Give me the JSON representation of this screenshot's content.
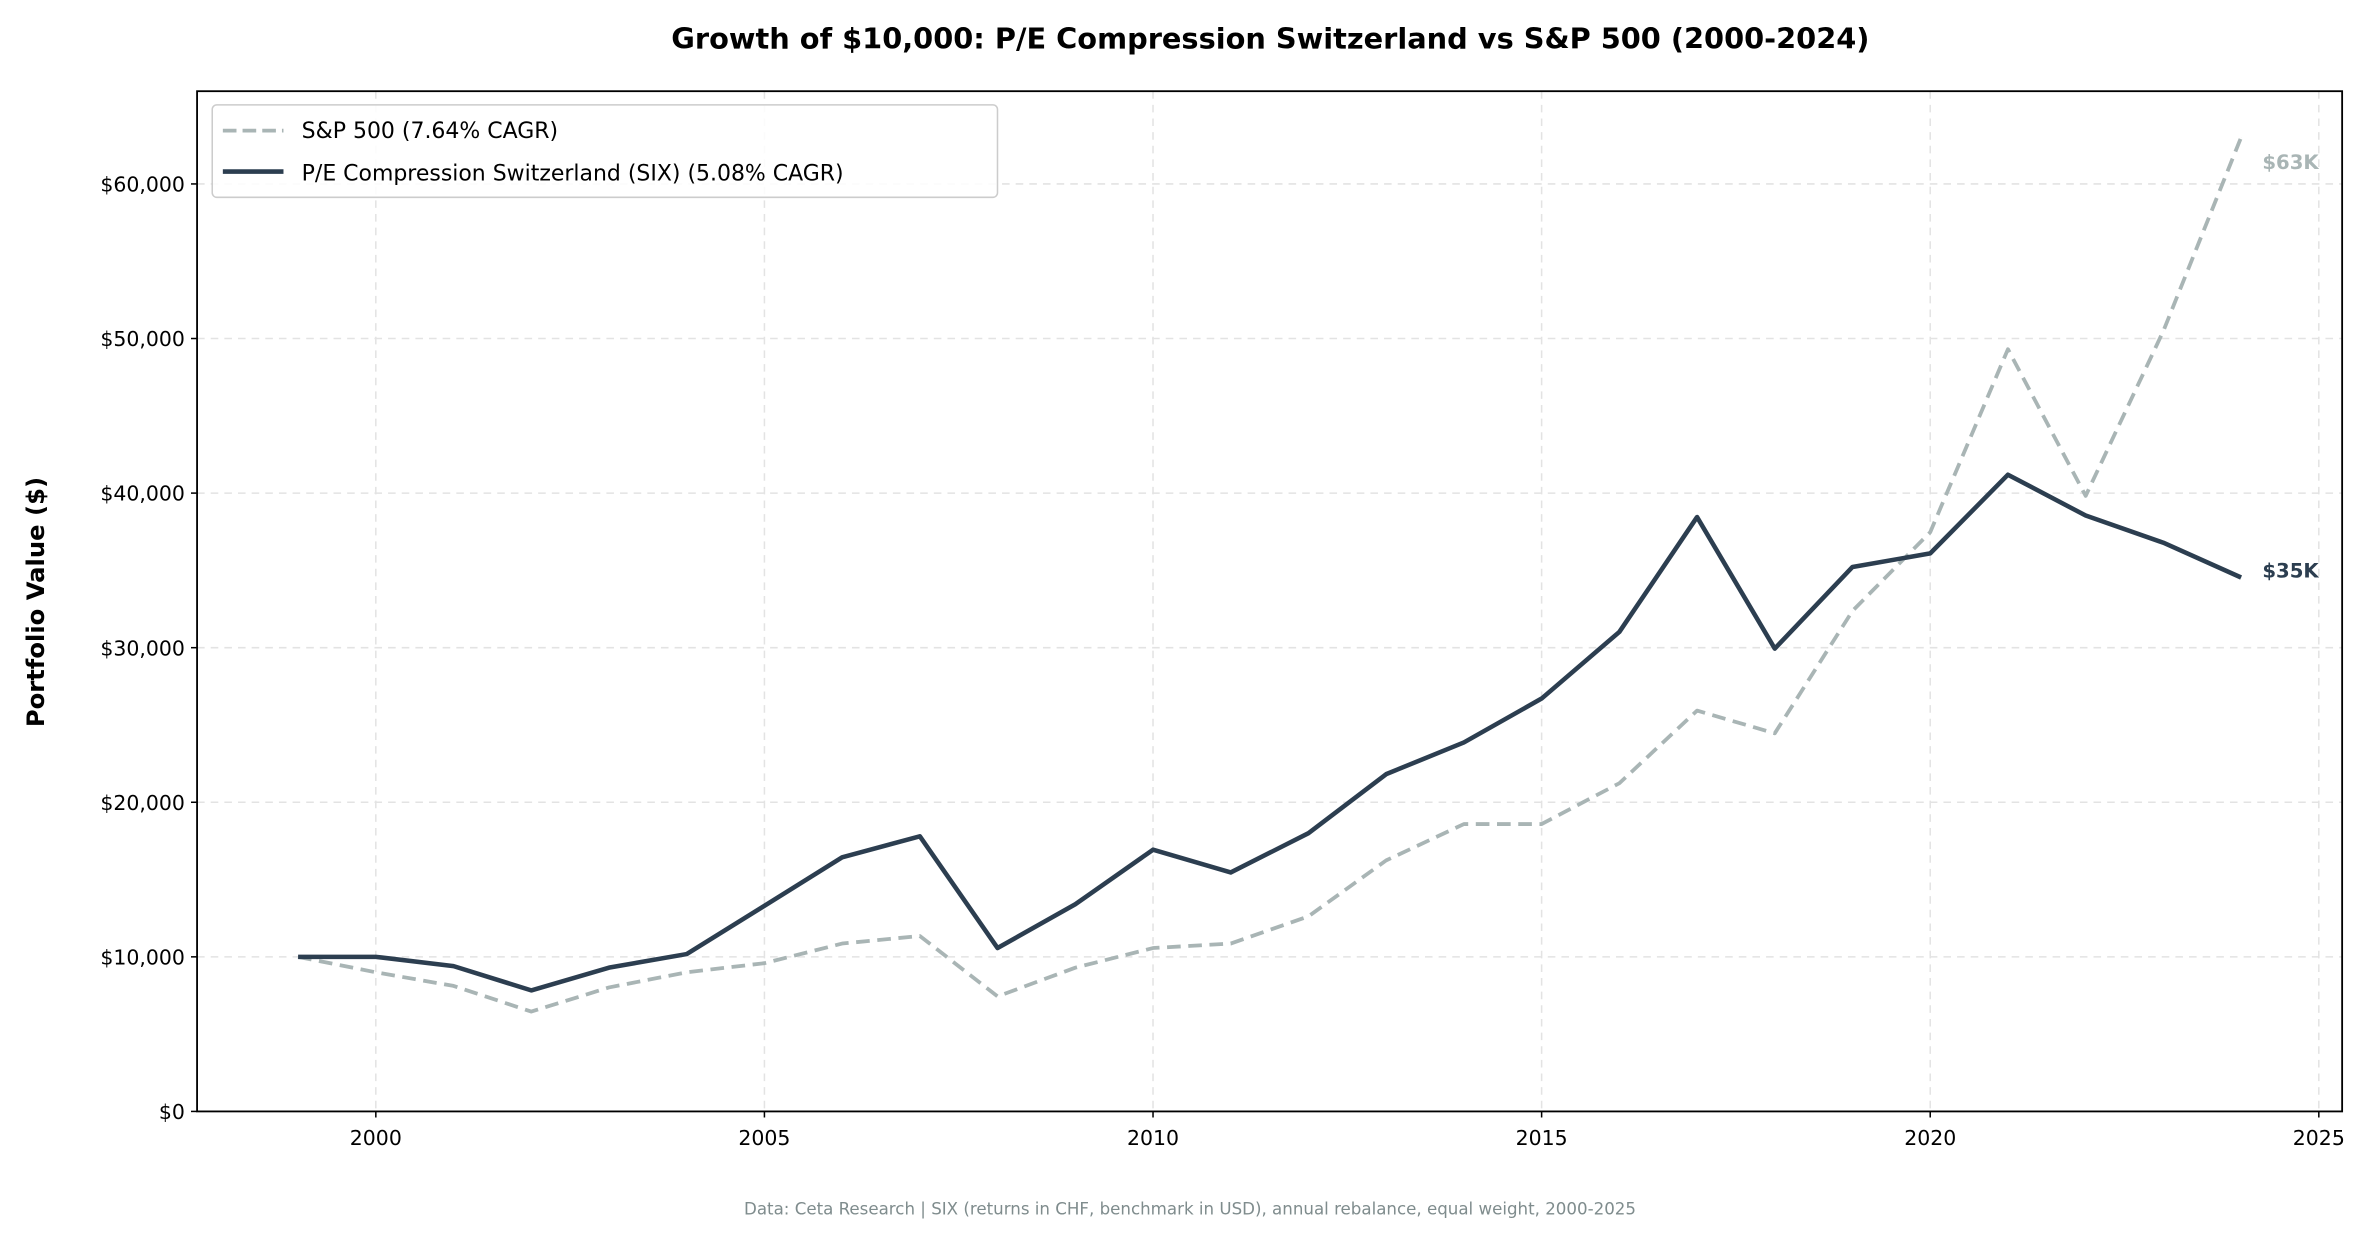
{
  "chart_data": {
    "type": "line",
    "title": "Growth of $10,000: P/E Compression Switzerland vs S&P 500 (2000-2024)",
    "xlabel": "",
    "ylabel": "Portfolio Value ($)",
    "xlim": [
      1997.7,
      2025.3
    ],
    "ylim": [
      0,
      66000
    ],
    "x_ticks": [
      "2000",
      "2005",
      "2010",
      "2015",
      "2020",
      "2025"
    ],
    "x_tick_values": [
      2000,
      2005,
      2010,
      2015,
      2020,
      2025
    ],
    "y_ticks": [
      "$0",
      "$10,000",
      "$20,000",
      "$30,000",
      "$40,000",
      "$50,000",
      "$60,000"
    ],
    "y_tick_values": [
      0,
      10000,
      20000,
      30000,
      40000,
      50000,
      60000
    ],
    "grid": true,
    "legend_placement": "top-left",
    "x": [
      1999,
      2000,
      2001,
      2002,
      2003,
      2004,
      2005,
      2006,
      2007,
      2008,
      2009,
      2010,
      2011,
      2012,
      2013,
      2014,
      2015,
      2016,
      2017,
      2018,
      2019,
      2020,
      2021,
      2022,
      2023,
      2024
    ],
    "series": [
      {
        "name": "S&P 500 (7.64% CAGR)",
        "color": "#a9b5b5",
        "style": "dashed",
        "end_label": "$63K",
        "values": [
          10000,
          9000,
          8120,
          6460,
          8020,
          9000,
          9590,
          10860,
          11350,
          7440,
          9300,
          10570,
          10860,
          12620,
          16240,
          18590,
          18590,
          21230,
          25930,
          24460,
          32380,
          37470,
          49310,
          39820,
          50490,
          63010
        ]
      },
      {
        "name": "P/E Compression Switzerland (SIX) (5.08% CAGR)",
        "color": "#2c3e50",
        "style": "solid",
        "end_label": "$35K",
        "values": [
          10000,
          10000,
          9400,
          7830,
          9300,
          10180,
          13300,
          16440,
          17800,
          10570,
          13400,
          16930,
          15460,
          18000,
          21820,
          23870,
          26710,
          31020,
          38450,
          29940,
          35220,
          36100,
          41190,
          38550,
          36790,
          34540
        ]
      }
    ],
    "footnote": "Data: Ceta Research | SIX (returns in CHF, benchmark in USD), annual rebalance, equal weight, 2000-2025"
  }
}
